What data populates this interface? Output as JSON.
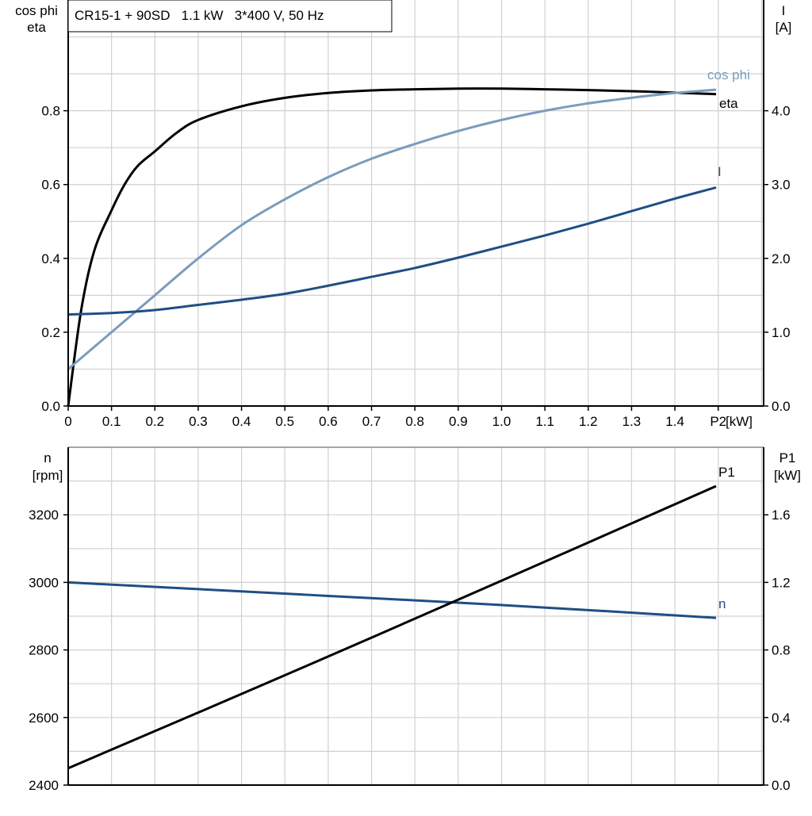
{
  "title": "CR15-1 + 90SD   1.1 kW   3*400 V, 50 Hz",
  "colors": {
    "eta": "#000000",
    "cos_phi": "#7a9cbc",
    "I": "#1f4e84",
    "n": "#1f4e84",
    "P1": "#000000",
    "grid": "#d0d0d0"
  },
  "chart_data": [
    {
      "type": "line",
      "title": "CR15-1 + 90SD   1.1 kW   3*400 V, 50 Hz",
      "xlabel": "P2 [kW]",
      "ylabel_left": [
        "cos phi",
        "eta"
      ],
      "ylabel_right": [
        "I",
        "[A]"
      ],
      "xlim": [
        0,
        1.6
      ],
      "ylim_left": [
        0,
        1.1
      ],
      "ylim_right": [
        0,
        5.5
      ],
      "grid": true,
      "x_ticks": [
        "0",
        "0.1",
        "0.2",
        "0.3",
        "0.4",
        "0.5",
        "0.6",
        "0.7",
        "0.8",
        "0.9",
        "1.0",
        "1.1",
        "1.2",
        "1.3",
        "1.4",
        "P2"
      ],
      "x_unit": "[kW]",
      "y_ticks_left": [
        "0.0",
        "0.2",
        "0.4",
        "0.6",
        "0.8"
      ],
      "y_ticks_right": [
        "0.0",
        "1.0",
        "2.0",
        "3.0",
        "4.0"
      ],
      "series": [
        {
          "name": "eta",
          "axis": "left",
          "x": [
            0,
            0.03,
            0.06,
            0.1,
            0.13,
            0.16,
            0.2,
            0.25,
            0.3,
            0.4,
            0.5,
            0.6,
            0.7,
            0.8,
            0.9,
            1.0,
            1.1,
            1.2,
            1.3,
            1.4,
            1.495
          ],
          "y": [
            0,
            0.26,
            0.42,
            0.53,
            0.6,
            0.65,
            0.69,
            0.74,
            0.775,
            0.812,
            0.835,
            0.848,
            0.855,
            0.858,
            0.86,
            0.86,
            0.858,
            0.856,
            0.853,
            0.849,
            0.845
          ]
        },
        {
          "name": "cos phi",
          "axis": "left",
          "x": [
            0,
            0.1,
            0.2,
            0.3,
            0.4,
            0.5,
            0.6,
            0.7,
            0.8,
            0.9,
            1.0,
            1.1,
            1.2,
            1.3,
            1.4,
            1.495
          ],
          "y": [
            0.1,
            0.2,
            0.3,
            0.4,
            0.49,
            0.56,
            0.62,
            0.67,
            0.71,
            0.745,
            0.775,
            0.8,
            0.82,
            0.835,
            0.848,
            0.857
          ]
        },
        {
          "name": "I",
          "axis": "right",
          "x": [
            0,
            0.1,
            0.2,
            0.3,
            0.4,
            0.5,
            0.6,
            0.7,
            0.8,
            0.9,
            1.0,
            1.1,
            1.2,
            1.3,
            1.4,
            1.495
          ],
          "y": [
            1.24,
            1.26,
            1.3,
            1.37,
            1.44,
            1.52,
            1.63,
            1.75,
            1.87,
            2.01,
            2.16,
            2.31,
            2.47,
            2.64,
            2.81,
            2.96
          ]
        }
      ]
    },
    {
      "type": "line",
      "ylabel_left": [
        "n",
        "[rpm]"
      ],
      "ylabel_right": [
        "P1",
        "[kW]"
      ],
      "xlim": [
        0,
        1.6
      ],
      "ylim_left": [
        2400,
        3400
      ],
      "ylim_right": [
        0,
        2.0
      ],
      "grid": true,
      "y_ticks_left": [
        "2400",
        "2600",
        "2800",
        "3000",
        "3200"
      ],
      "y_ticks_right": [
        "0.0",
        "0.4",
        "0.8",
        "1.2",
        "1.6"
      ],
      "series": [
        {
          "name": "n",
          "axis": "left",
          "x": [
            0,
            0.3,
            0.6,
            0.9,
            1.2,
            1.495
          ],
          "y": [
            3000,
            2980,
            2960,
            2940,
            2918,
            2895
          ]
        },
        {
          "name": "P1",
          "axis": "right",
          "x": [
            0,
            0.5,
            1.0,
            1.495
          ],
          "y": [
            0.1,
            0.65,
            1.21,
            1.77
          ]
        }
      ]
    }
  ]
}
